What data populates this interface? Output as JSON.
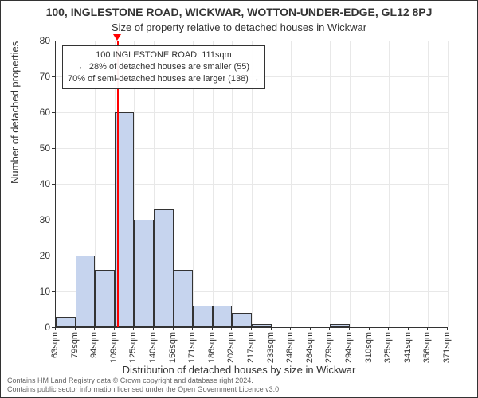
{
  "title_main": "100, INGLESTONE ROAD, WICKWAR, WOTTON-UNDER-EDGE, GL12 8PJ",
  "title_sub": "Size of property relative to detached houses in Wickwar",
  "ylabel": "Number of detached properties",
  "xlabel": "Distribution of detached houses by size in Wickwar",
  "chart": {
    "type": "histogram",
    "background_color": "#ffffff",
    "grid_color": "#e8e8e8",
    "axis_color": "#333333",
    "bar_fill": "#c6d4ee",
    "bar_border": "#333333",
    "ylim": [
      0,
      80
    ],
    "yticks": [
      0,
      10,
      20,
      30,
      40,
      50,
      60,
      70,
      80
    ],
    "xlabels": [
      "63sqm",
      "79sqm",
      "94sqm",
      "109sqm",
      "125sqm",
      "140sqm",
      "156sqm",
      "171sqm",
      "186sqm",
      "202sqm",
      "217sqm",
      "233sqm",
      "248sqm",
      "264sqm",
      "279sqm",
      "294sqm",
      "310sqm",
      "325sqm",
      "341sqm",
      "356sqm",
      "371sqm"
    ],
    "values": [
      3,
      20,
      16,
      60,
      30,
      33,
      16,
      6,
      6,
      4,
      1,
      0,
      0,
      0,
      1,
      0,
      0,
      0,
      0,
      0
    ],
    "title_fontsize": 14,
    "sub_fontsize": 13,
    "label_fontsize": 12,
    "tick_fontsize": 11
  },
  "callout": {
    "line1": "100 INGLESTONE ROAD: 111sqm",
    "line2": "← 28% of detached houses are smaller (55)",
    "line3": "70% of semi-detached houses are larger (138) →",
    "border_color": "#333333",
    "bg_color": "#ffffff",
    "fontsize": 11
  },
  "marker": {
    "value_sqm": 111,
    "color": "#ff0000"
  },
  "attribution": {
    "line1": "Contains HM Land Registry data © Crown copyright and database right 2024.",
    "line2": "Contains public sector information licensed under the Open Government Licence v3.0."
  }
}
